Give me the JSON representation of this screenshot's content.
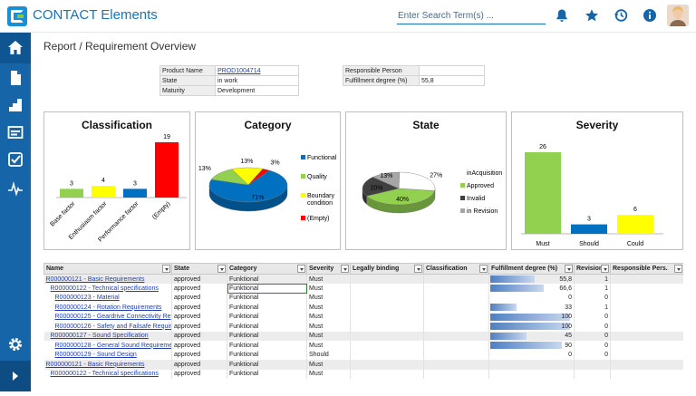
{
  "app": {
    "title": "CONTACT Elements"
  },
  "header": {
    "search_placeholder": "Enter Search Term(s) ...",
    "icons": [
      "bell-icon",
      "star-icon",
      "history-icon",
      "info-icon"
    ]
  },
  "sidebar": {
    "icons": [
      "home-icon",
      "document-icon",
      "structure-icon",
      "project-icon",
      "checklist-icon",
      "chart-icon",
      "settings-icon",
      "expand-icon"
    ]
  },
  "page": {
    "title": "Report / Requirement Overview"
  },
  "info_left": [
    {
      "label": "Product Name",
      "value": "PROD1004714"
    },
    {
      "label": "State",
      "value": "in work"
    },
    {
      "label": "Maturity",
      "value": "Development"
    }
  ],
  "info_right": [
    {
      "label": "Responsible Person",
      "value": ""
    },
    {
      "label": "Fulfillment degree (%)",
      "value": "55,8"
    }
  ],
  "chart_data": [
    {
      "type": "bar",
      "title": "Classification",
      "categories": [
        "Base factor",
        "Enthusiasm factor",
        "Performance factor",
        "(Empty)"
      ],
      "values": [
        3,
        4,
        3,
        19
      ],
      "colors": [
        "#92d050",
        "#ffff00",
        "#0070c0",
        "#ff0000"
      ]
    },
    {
      "type": "pie",
      "title": "Category",
      "labels": [
        "Functional",
        "Quality",
        "Boundary condition",
        "(Empty)"
      ],
      "values": [
        71,
        13,
        13,
        3
      ],
      "colors": [
        "#0070c0",
        "#92d050",
        "#ffff00",
        "#ff0000"
      ],
      "legend": "right"
    },
    {
      "type": "pie",
      "title": "State",
      "labels": [
        "inAcquisition",
        "Approved",
        "Invalid",
        "in Revision"
      ],
      "values": [
        27,
        40,
        20,
        13
      ],
      "colors": [
        "#ffffff",
        "#92d050",
        "#404040",
        "#a6a6a6"
      ],
      "legend": "right"
    },
    {
      "type": "bar",
      "title": "Severity",
      "categories": [
        "Must",
        "Should",
        "Could"
      ],
      "values": [
        26,
        3,
        6
      ],
      "colors": [
        "#92d050",
        "#0070c0",
        "#ffff00"
      ]
    }
  ],
  "grid": {
    "columns": [
      "Name",
      "State",
      "Category",
      "Severity",
      "Legally binding",
      "Classification",
      "Fulfillment degree (%)",
      "Revision",
      "Responsible Pers."
    ],
    "rows": [
      {
        "name": "R000000121 - Basic Requirements",
        "indent": 0,
        "state": "approved",
        "category": "Funktional",
        "severity": "Must",
        "fulfillment": "55,8",
        "fill": 0.558,
        "revision": "1",
        "group": true,
        "selected": false
      },
      {
        "name": "R000000122 - Technical specifications",
        "indent": 1,
        "state": "approved",
        "category": "Funktional",
        "severity": "Must",
        "fulfillment": "66,6",
        "fill": 0.666,
        "revision": "1",
        "group": false,
        "selected": true
      },
      {
        "name": "R000000123 - Material",
        "indent": 2,
        "state": "approved",
        "category": "Funktional",
        "severity": "Must",
        "fulfillment": "0",
        "fill": 0,
        "revision": "0",
        "group": false,
        "selected": false
      },
      {
        "name": "R000000124 - Rotation Requirements",
        "indent": 2,
        "state": "approved",
        "category": "Funktional",
        "severity": "Must",
        "fulfillment": "33",
        "fill": 0.33,
        "revision": "1",
        "group": false,
        "selected": false
      },
      {
        "name": "R000000125 - Geardrive Connectivity Re",
        "indent": 2,
        "state": "approved",
        "category": "Funktional",
        "severity": "Must",
        "fulfillment": "100",
        "fill": 1,
        "revision": "0",
        "group": false,
        "selected": false
      },
      {
        "name": "R000000126 - Safety and Failsafe Requir",
        "indent": 2,
        "state": "approved",
        "category": "Funktional",
        "severity": "Must",
        "fulfillment": "100",
        "fill": 1,
        "revision": "0",
        "group": false,
        "selected": false
      },
      {
        "name": "R000000127 - Sound Specification",
        "indent": 1,
        "state": "approved",
        "category": "Funktional",
        "severity": "Must",
        "fulfillment": "45",
        "fill": 0.45,
        "revision": "0",
        "group": true,
        "selected": false
      },
      {
        "name": "R000000128 - General Sound Requireme",
        "indent": 2,
        "state": "approved",
        "category": "Funktional",
        "severity": "Must",
        "fulfillment": "90",
        "fill": 0.9,
        "revision": "0",
        "group": false,
        "selected": false
      },
      {
        "name": "R000000129 - Sound Design",
        "indent": 2,
        "state": "approved",
        "category": "Funktional",
        "severity": "Should",
        "fulfillment": "0",
        "fill": 0,
        "revision": "0",
        "group": false,
        "selected": false
      },
      {
        "name": "R000000121 - Basic Requirements",
        "indent": 0,
        "state": "approved",
        "category": "Funktional",
        "severity": "Must",
        "fulfillment": "",
        "fill": 0,
        "revision": "",
        "group": true,
        "selected": false
      },
      {
        "name": "R000000122 - Technical specifications",
        "indent": 1,
        "state": "approved",
        "category": "Funktional",
        "severity": "Must",
        "fulfillment": "",
        "fill": 0,
        "revision": "",
        "group": false,
        "selected": false
      }
    ]
  }
}
